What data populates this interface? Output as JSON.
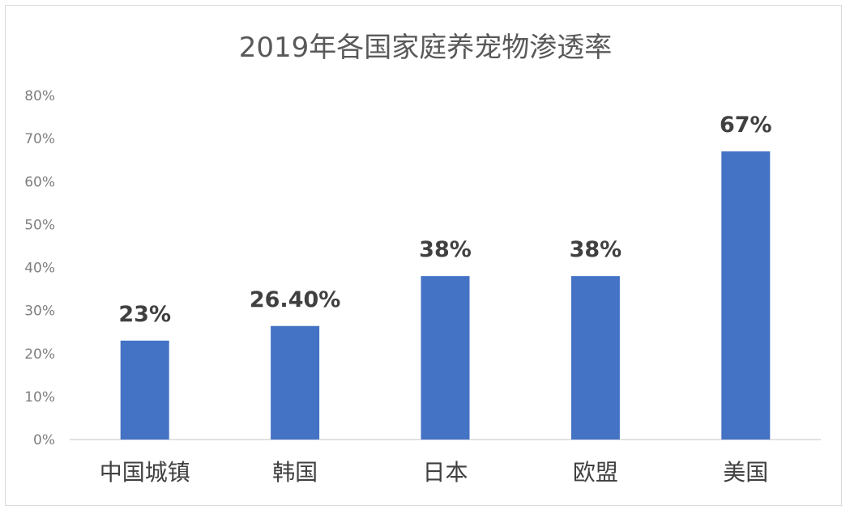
{
  "chart_data": {
    "type": "bar",
    "title": "2019年各国家庭养宠物渗透率",
    "categories": [
      "中国城镇",
      "韩国",
      "日本",
      "欧盟",
      "美国"
    ],
    "values": [
      23,
      26.4,
      38,
      38,
      67
    ],
    "data_labels": [
      "23%",
      "26.40%",
      "38%",
      "38%",
      "67%"
    ],
    "ylim": [
      0,
      80
    ],
    "yticks": [
      0,
      10,
      20,
      30,
      40,
      50,
      60,
      70,
      80
    ],
    "ytick_labels": [
      "0%",
      "10%",
      "20%",
      "30%",
      "40%",
      "50%",
      "60%",
      "70%",
      "80%"
    ],
    "xlabel": "",
    "ylabel": "",
    "grid": false,
    "legend": "none",
    "bar_color": "#4472c4"
  }
}
